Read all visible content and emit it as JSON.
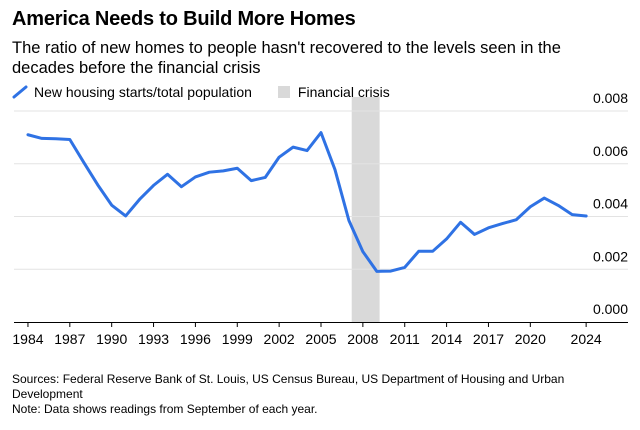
{
  "title": "America Needs to Build More Homes",
  "subtitle": "The ratio of new homes to people hasn't recovered to the levels seen in the decades before the financial crisis",
  "legend": {
    "series_label": "New housing starts/total population",
    "shade_label": "Financial crisis"
  },
  "colors": {
    "line": "#2f72e4",
    "shade": "#d9d9d9",
    "grid": "#e3e3e3"
  },
  "footer": {
    "sources": "Sources: Federal Reserve Bank of St. Louis, US Census Bureau, US Department of Housing and Urban Development",
    "note": "Note: Data shows readings from September of each year."
  },
  "chart_data": {
    "type": "line",
    "title": "America Needs to Build More Homes",
    "xlabel": "",
    "ylabel": "",
    "xlim": [
      1983,
      2027
    ],
    "ylim": [
      0,
      0.008
    ],
    "y_axis_side": "right",
    "grid": true,
    "legend_position": "top-left",
    "x_ticks": [
      1984,
      1987,
      1990,
      1993,
      1996,
      1999,
      2002,
      2005,
      2008,
      2011,
      2014,
      2017,
      2020,
      2024
    ],
    "y_ticks": [
      "0.000",
      "0.002",
      "0.004",
      "0.006",
      "0.008"
    ],
    "shaded_regions": [
      {
        "name": "Financial crisis",
        "start": 2007.2,
        "end": 2009.2
      }
    ],
    "series": [
      {
        "name": "New housing starts/total population",
        "x": [
          1984,
          1985,
          1986,
          1987,
          1988,
          1989,
          1990,
          1991,
          1992,
          1993,
          1994,
          1995,
          1996,
          1997,
          1998,
          1999,
          2000,
          2001,
          2002,
          2003,
          2004,
          2005,
          2006,
          2007,
          2008,
          2009,
          2010,
          2011,
          2012,
          2013,
          2014,
          2015,
          2016,
          2017,
          2018,
          2019,
          2020,
          2021,
          2022,
          2023,
          2024
        ],
        "values": [
          0.0071,
          0.00696,
          0.00695,
          0.00692,
          0.00605,
          0.0052,
          0.00443,
          0.00402,
          0.00465,
          0.00518,
          0.0056,
          0.00513,
          0.0055,
          0.00568,
          0.00573,
          0.00583,
          0.00536,
          0.00548,
          0.00625,
          0.00663,
          0.0065,
          0.00718,
          0.00578,
          0.00385,
          0.00267,
          0.00192,
          0.00193,
          0.00207,
          0.00268,
          0.00268,
          0.00315,
          0.00378,
          0.00332,
          0.00357,
          0.00373,
          0.00388,
          0.00437,
          0.0047,
          0.00442,
          0.00407,
          0.00402
        ]
      }
    ]
  }
}
